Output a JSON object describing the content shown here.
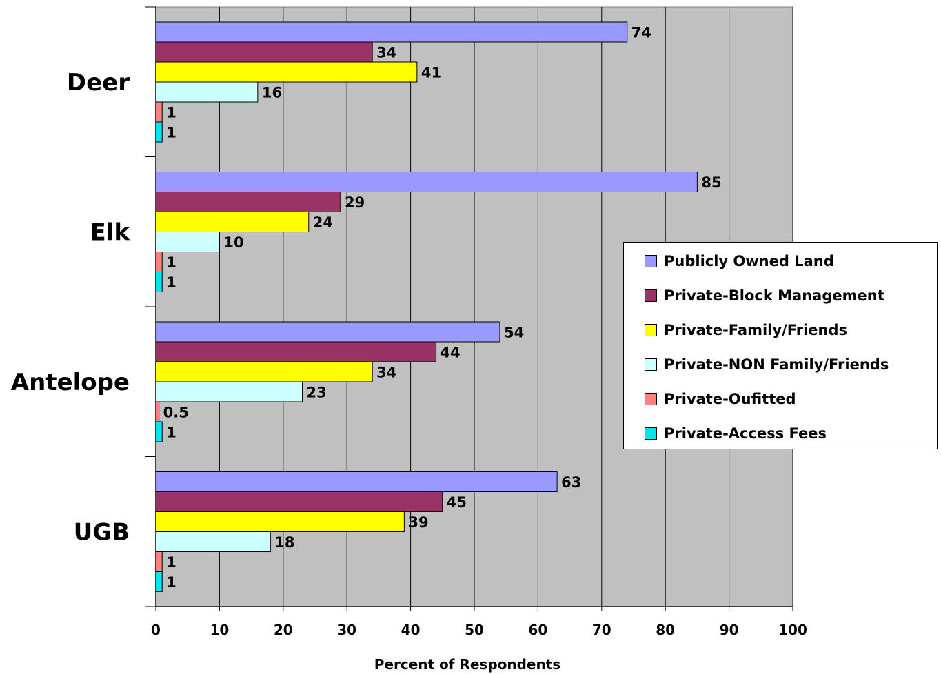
{
  "chart_data": {
    "type": "bar",
    "orientation": "horizontal",
    "title": "",
    "xlabel": "Percent of Respondents",
    "ylabel": "",
    "xlim": [
      0,
      100
    ],
    "x_ticks": [
      "0",
      "10",
      "20",
      "30",
      "40",
      "50",
      "60",
      "70",
      "80",
      "90",
      "100"
    ],
    "categories": [
      "Deer",
      "Elk",
      "Antelope",
      "UGB"
    ],
    "series": [
      {
        "name": "Publicly Owned Land",
        "color": "#9999FF",
        "values": [
          74,
          85,
          54,
          63
        ],
        "labels": [
          "74",
          "85",
          "54",
          "63"
        ]
      },
      {
        "name": "Private-Block Management",
        "color": "#993366",
        "values": [
          34,
          29,
          44,
          45
        ],
        "labels": [
          "34",
          "29",
          "44",
          "45"
        ]
      },
      {
        "name": "Private-Family/Friends",
        "color": "#FFFF00",
        "values": [
          41,
          24,
          34,
          39
        ],
        "labels": [
          "41",
          "24",
          "34",
          "39"
        ]
      },
      {
        "name": "Private-NON Family/Friends",
        "color": "#CCFFFF",
        "values": [
          16,
          10,
          23,
          18
        ],
        "labels": [
          "16",
          "10",
          "23",
          "18"
        ]
      },
      {
        "name": "Private-Oufitted",
        "color": "#FF8080",
        "values": [
          1,
          1,
          0.5,
          1
        ],
        "labels": [
          "1",
          "1",
          "0.5",
          "1"
        ]
      },
      {
        "name": "Private-Access Fees",
        "color": "#00E5EE",
        "values": [
          1,
          1,
          1,
          1
        ],
        "labels": [
          "1",
          "1",
          "1",
          "1"
        ]
      }
    ],
    "grid": true,
    "plot_background": "#C0C0C0",
    "legend_position": "right"
  }
}
